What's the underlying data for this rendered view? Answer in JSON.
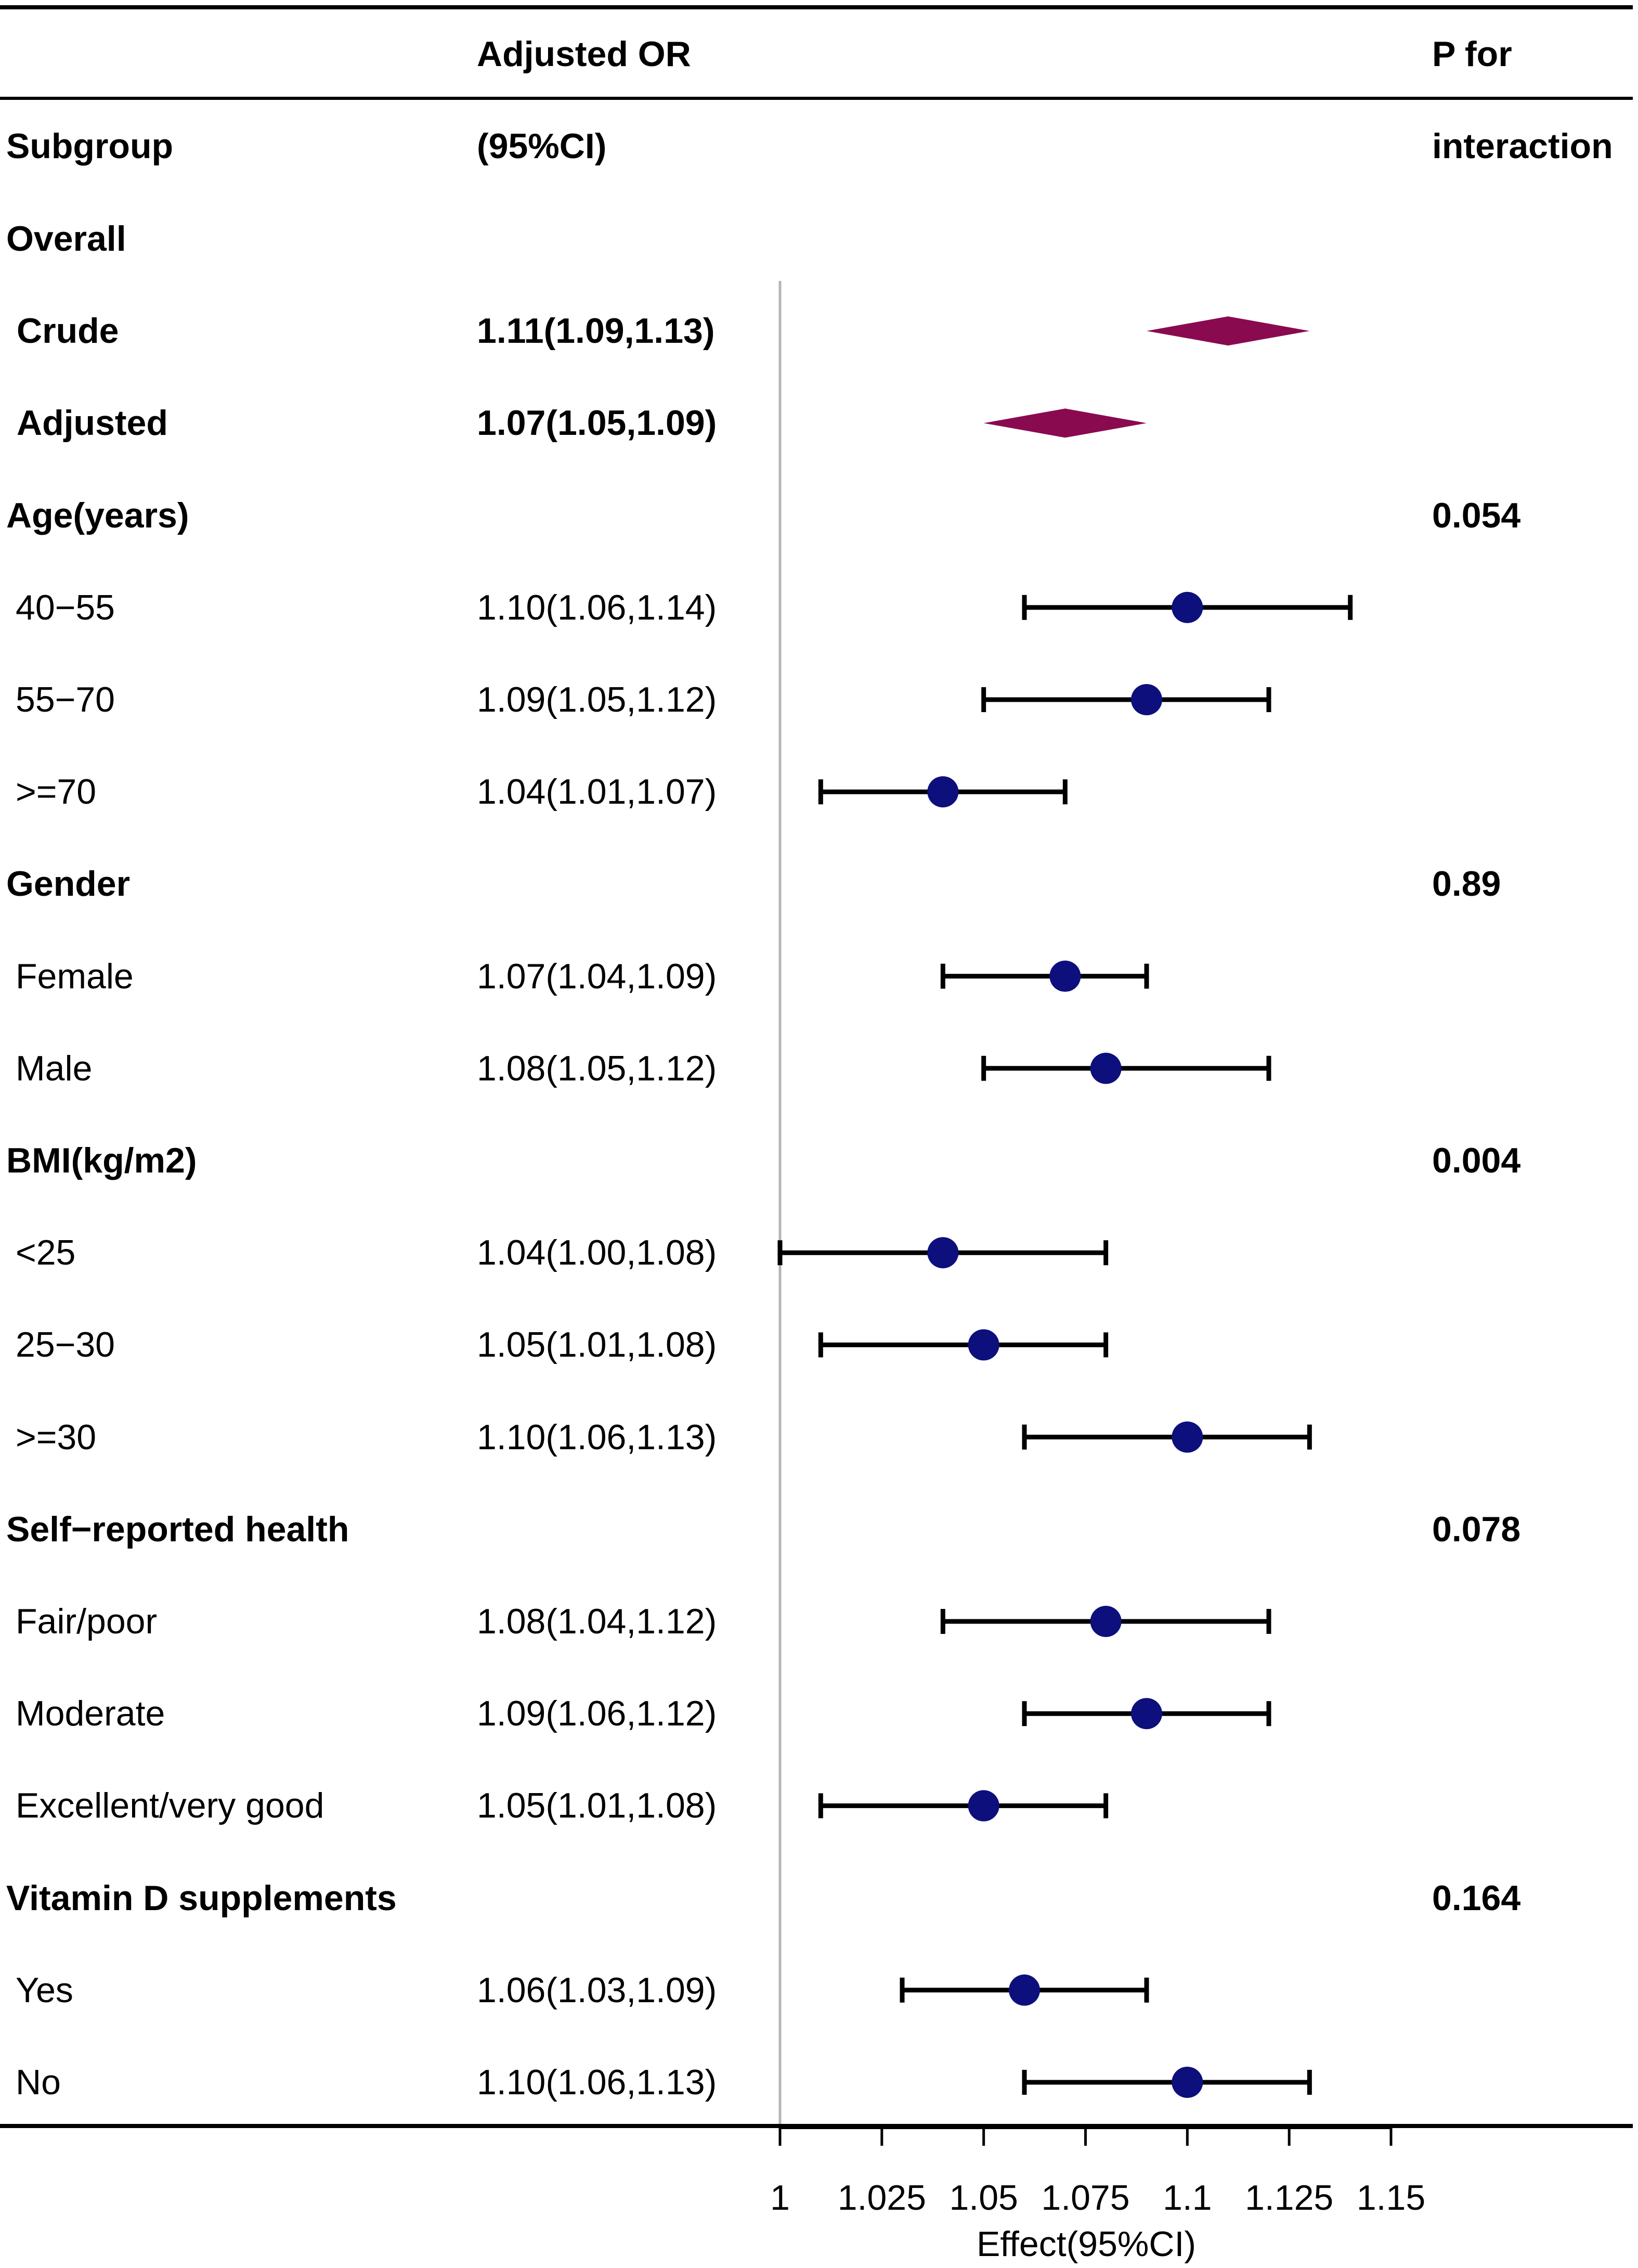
{
  "header": {
    "subgroup": "Subgroup",
    "or_line1": "Adjusted OR",
    "or_line2": "(95%CI)",
    "p_line1": "P for",
    "p_line2": "interaction"
  },
  "chart_data": {
    "type": "forest",
    "xlabel": "Effect(95%CI)",
    "xlim": [
      1,
      1.15
    ],
    "reference_line": 1,
    "x_ticks": [
      {
        "value": 1,
        "label": "1"
      },
      {
        "value": 1.025,
        "label": "1.025"
      },
      {
        "value": 1.05,
        "label": "1.05"
      },
      {
        "value": 1.075,
        "label": "1.075"
      },
      {
        "value": 1.1,
        "label": "1.1"
      },
      {
        "value": 1.125,
        "label": "1.125"
      },
      {
        "value": 1.15,
        "label": "1.15"
      }
    ],
    "colors": {
      "point": "#0c0f7c",
      "diamond": "#8a0a50",
      "whisker": "#000000",
      "refline": "#b5b5b5"
    },
    "rows": [
      {
        "kind": "group",
        "label": "Overall",
        "ci_text": "",
        "p": ""
      },
      {
        "kind": "summary",
        "label": "Crude",
        "ci_text": "1.11(1.09,1.13)",
        "est": 1.11,
        "lo": 1.09,
        "hi": 1.13,
        "p": ""
      },
      {
        "kind": "summary",
        "label": "Adjusted",
        "ci_text": "1.07(1.05,1.09)",
        "est": 1.07,
        "lo": 1.05,
        "hi": 1.09,
        "p": ""
      },
      {
        "kind": "group",
        "label": "Age(years)",
        "ci_text": "",
        "p": "0.054"
      },
      {
        "kind": "item",
        "label": "40−55",
        "ci_text": "1.10(1.06,1.14)",
        "est": 1.1,
        "lo": 1.06,
        "hi": 1.14,
        "p": ""
      },
      {
        "kind": "item",
        "label": "55−70",
        "ci_text": "1.09(1.05,1.12)",
        "est": 1.09,
        "lo": 1.05,
        "hi": 1.12,
        "p": ""
      },
      {
        "kind": "item",
        "label": ">=70",
        "ci_text": "1.04(1.01,1.07)",
        "est": 1.04,
        "lo": 1.01,
        "hi": 1.07,
        "p": ""
      },
      {
        "kind": "group",
        "label": "Gender",
        "ci_text": "",
        "p": "0.89"
      },
      {
        "kind": "item",
        "label": "Female",
        "ci_text": "1.07(1.04,1.09)",
        "est": 1.07,
        "lo": 1.04,
        "hi": 1.09,
        "p": ""
      },
      {
        "kind": "item",
        "label": "Male",
        "ci_text": "1.08(1.05,1.12)",
        "est": 1.08,
        "lo": 1.05,
        "hi": 1.12,
        "p": ""
      },
      {
        "kind": "group",
        "label": "BMI(kg/m2)",
        "ci_text": "",
        "p": "0.004"
      },
      {
        "kind": "item",
        "label": "<25",
        "ci_text": "1.04(1.00,1.08)",
        "est": 1.04,
        "lo": 1.0,
        "hi": 1.08,
        "p": ""
      },
      {
        "kind": "item",
        "label": "25−30",
        "ci_text": "1.05(1.01,1.08)",
        "est": 1.05,
        "lo": 1.01,
        "hi": 1.08,
        "p": ""
      },
      {
        "kind": "item",
        "label": ">=30",
        "ci_text": "1.10(1.06,1.13)",
        "est": 1.1,
        "lo": 1.06,
        "hi": 1.13,
        "p": ""
      },
      {
        "kind": "group",
        "label": "Self−reported health",
        "ci_text": "",
        "p": "0.078"
      },
      {
        "kind": "item",
        "label": "Fair/poor",
        "ci_text": "1.08(1.04,1.12)",
        "est": 1.08,
        "lo": 1.04,
        "hi": 1.12,
        "p": ""
      },
      {
        "kind": "item",
        "label": "Moderate",
        "ci_text": "1.09(1.06,1.12)",
        "est": 1.09,
        "lo": 1.06,
        "hi": 1.12,
        "p": ""
      },
      {
        "kind": "item",
        "label": "Excellent/very good",
        "ci_text": "1.05(1.01,1.08)",
        "est": 1.05,
        "lo": 1.01,
        "hi": 1.08,
        "p": ""
      },
      {
        "kind": "group",
        "label": "Vitamin D supplements",
        "ci_text": "",
        "p": "0.164"
      },
      {
        "kind": "item",
        "label": "Yes",
        "ci_text": "1.06(1.03,1.09)",
        "est": 1.06,
        "lo": 1.03,
        "hi": 1.09,
        "p": ""
      },
      {
        "kind": "item",
        "label": "No",
        "ci_text": "1.10(1.06,1.13)",
        "est": 1.1,
        "lo": 1.06,
        "hi": 1.13,
        "p": ""
      }
    ]
  }
}
